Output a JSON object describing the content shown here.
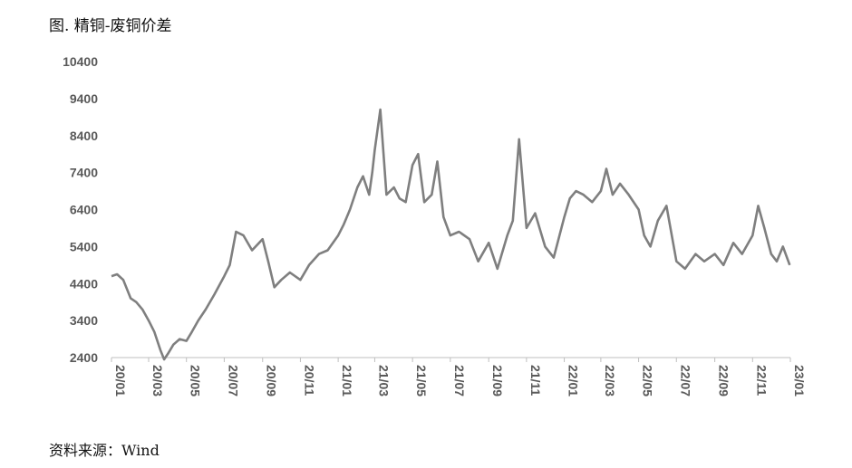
{
  "header": {
    "title": "图. 精铜-废铜价差"
  },
  "footer": {
    "source": "资料来源：Wind"
  },
  "chart_data": {
    "type": "line",
    "title": "图. 精铜-废铜价差",
    "xlabel": "",
    "ylabel": "",
    "ylim": [
      2400,
      10400
    ],
    "yticks": [
      2400,
      3400,
      4400,
      5400,
      6400,
      7400,
      8400,
      9400,
      10400
    ],
    "xticks": [
      "20/01",
      "20/03",
      "20/05",
      "20/07",
      "20/09",
      "20/11",
      "21/01",
      "21/03",
      "21/05",
      "21/07",
      "21/09",
      "21/11",
      "22/01",
      "22/03",
      "22/05",
      "22/07",
      "22/09",
      "22/11",
      "23/01"
    ],
    "grid": false,
    "color": "#7f7f7f",
    "series": [
      {
        "name": "",
        "x": [
          "2020-01-01",
          "2020-01-10",
          "2020-01-20",
          "2020-02-01",
          "2020-02-10",
          "2020-02-20",
          "2020-03-01",
          "2020-03-10",
          "2020-03-20",
          "2020-03-26",
          "2020-04-01",
          "2020-04-10",
          "2020-04-20",
          "2020-05-01",
          "2020-05-10",
          "2020-05-20",
          "2020-06-01",
          "2020-06-15",
          "2020-07-01",
          "2020-07-10",
          "2020-07-20",
          "2020-08-01",
          "2020-08-15",
          "2020-09-01",
          "2020-09-10",
          "2020-09-20",
          "2020-10-01",
          "2020-10-15",
          "2020-11-01",
          "2020-11-15",
          "2020-12-01",
          "2020-12-15",
          "2021-01-01",
          "2021-01-10",
          "2021-01-20",
          "2021-02-01",
          "2021-02-10",
          "2021-02-20",
          "2021-02-25",
          "2021-03-01",
          "2021-03-10",
          "2021-03-20",
          "2021-04-01",
          "2021-04-10",
          "2021-04-20",
          "2021-05-01",
          "2021-05-10",
          "2021-05-20",
          "2021-06-01",
          "2021-06-10",
          "2021-06-20",
          "2021-07-01",
          "2021-07-15",
          "2021-08-01",
          "2021-08-15",
          "2021-09-01",
          "2021-09-15",
          "2021-10-01",
          "2021-10-10",
          "2021-10-20",
          "2021-11-01",
          "2021-11-15",
          "2021-12-01",
          "2021-12-15",
          "2022-01-01",
          "2022-01-10",
          "2022-01-20",
          "2022-02-01",
          "2022-02-15",
          "2022-03-01",
          "2022-03-10",
          "2022-03-20",
          "2022-04-01",
          "2022-04-15",
          "2022-05-01",
          "2022-05-10",
          "2022-05-20",
          "2022-06-01",
          "2022-06-15",
          "2022-07-01",
          "2022-07-15",
          "2022-08-01",
          "2022-08-15",
          "2022-09-01",
          "2022-09-15",
          "2022-10-01",
          "2022-10-15",
          "2022-11-01",
          "2022-11-10",
          "2022-11-20",
          "2022-12-01",
          "2022-12-10",
          "2022-12-20",
          "2022-12-31"
        ],
        "y": [
          4600,
          4650,
          4500,
          4000,
          3900,
          3700,
          3400,
          3100,
          2600,
          2350,
          2500,
          2750,
          2900,
          2850,
          3100,
          3400,
          3700,
          4100,
          4600,
          4900,
          5800,
          5700,
          5300,
          5600,
          5000,
          4300,
          4500,
          4700,
          4500,
          4900,
          5200,
          5300,
          5700,
          6000,
          6400,
          7000,
          7300,
          6800,
          7400,
          8000,
          9100,
          6800,
          7000,
          6700,
          6600,
          7600,
          7900,
          6600,
          6800,
          7700,
          6200,
          5700,
          5800,
          5600,
          5000,
          5500,
          4800,
          5700,
          6100,
          8300,
          5900,
          6300,
          5400,
          5100,
          6200,
          6700,
          6900,
          6800,
          6600,
          6900,
          7500,
          6800,
          7100,
          6800,
          6400,
          5700,
          5400,
          6100,
          6500,
          5000,
          4800,
          5200,
          5000,
          5200,
          4900,
          5500,
          5200,
          5700,
          6500,
          5900,
          5200,
          5000,
          5400,
          4900
        ]
      }
    ]
  }
}
